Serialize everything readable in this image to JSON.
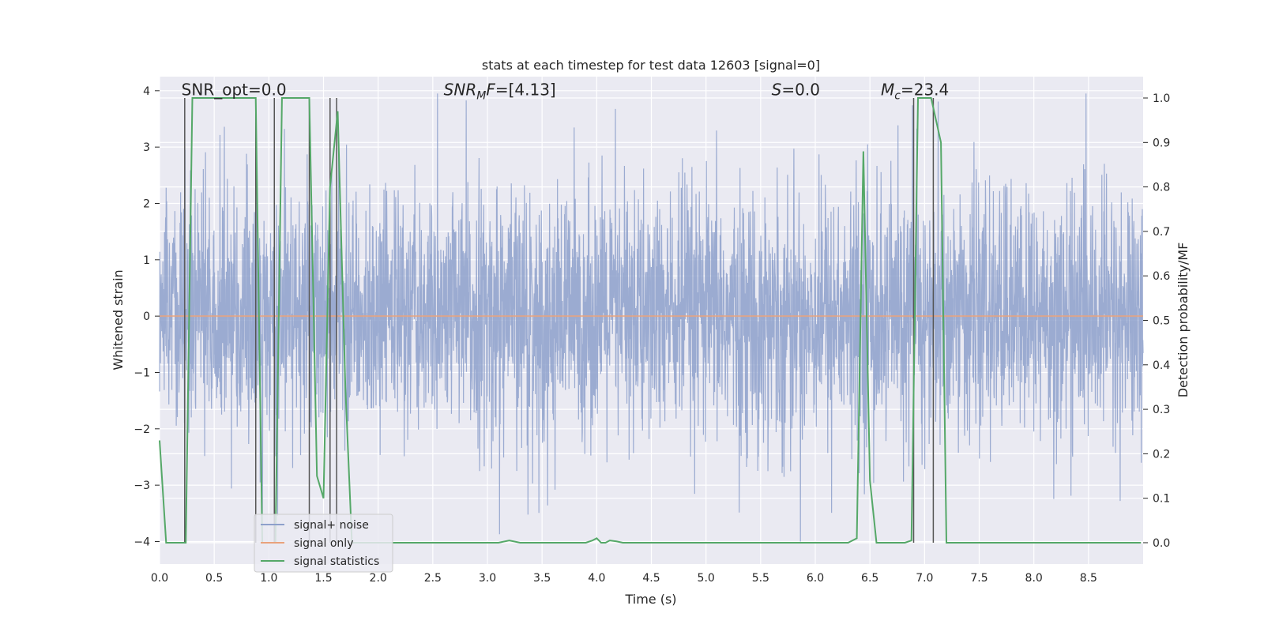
{
  "chart_data": {
    "type": "line",
    "title": "stats at each timestep for test data 12603 [signal=0]",
    "xlabel": "Time (s)",
    "ylabel_left": "Whitened strain",
    "ylabel_right": "Detection probability/MF",
    "xlim": [
      0.0,
      9.0
    ],
    "ylim_left": [
      -4.4,
      4.25
    ],
    "ylim_right": [
      -0.048,
      1.048
    ],
    "x_ticks": [
      0.0,
      0.5,
      1.0,
      1.5,
      2.0,
      2.5,
      3.0,
      3.5,
      4.0,
      4.5,
      5.0,
      5.5,
      6.0,
      6.5,
      7.0,
      7.5,
      8.0,
      8.5
    ],
    "x_tick_labels": [
      "0.0",
      "0.5",
      "1.0",
      "1.5",
      "2.0",
      "2.5",
      "3.0",
      "3.5",
      "4.0",
      "4.5",
      "5.0",
      "5.5",
      "6.0",
      "6.5",
      "7.0",
      "7.5",
      "8.0",
      "8.5"
    ],
    "y_left_ticks": [
      -4,
      -3,
      -2,
      -1,
      0,
      1,
      2,
      3,
      4
    ],
    "y_left_tick_labels": [
      "−4",
      "−3",
      "−2",
      "−1",
      "0",
      "1",
      "2",
      "3",
      "4"
    ],
    "y_right_ticks": [
      0.0,
      0.1,
      0.2,
      0.3,
      0.4,
      0.5,
      0.6,
      0.7,
      0.8,
      0.9,
      1.0
    ],
    "y_right_tick_labels": [
      "0.0",
      "0.1",
      "0.2",
      "0.3",
      "0.4",
      "0.5",
      "0.6",
      "0.7",
      "0.8",
      "0.9",
      "1.0"
    ],
    "grid": true,
    "legend_placement": "lower-left",
    "annotations": [
      {
        "text": "SNR_opt=0.0",
        "x": 0.2
      },
      {
        "text": "SNR_MF=[4.13]",
        "x": 2.6
      },
      {
        "text": "S=0.0",
        "x": 5.6
      },
      {
        "text": "M_c=23.4",
        "x": 6.6
      }
    ],
    "series": [
      {
        "name": "signal+ noise",
        "axis": "left",
        "color": "#8da0cb",
        "description_stats": {
          "envelope_low": -2.0,
          "envelope_high": 2.6,
          "peak_high": 3.9,
          "peak_low": -4.0
        },
        "seed": 12603
      },
      {
        "name": "signal only",
        "axis": "left",
        "color": "#e9a27c",
        "x": [
          0.0,
          9.0
        ],
        "y": [
          0.0,
          0.0
        ]
      },
      {
        "name": "signal statistics",
        "axis": "right",
        "color": "#55a868",
        "x": [
          0.0,
          0.06,
          0.12,
          0.18,
          0.24,
          0.3,
          0.36,
          0.5,
          0.7,
          0.88,
          0.94,
          1.0,
          1.06,
          1.12,
          1.3,
          1.37,
          1.44,
          1.5,
          1.56,
          1.63,
          1.7,
          1.76,
          1.82,
          1.9,
          2.1,
          3.1,
          3.2,
          3.3,
          3.9,
          3.96,
          4.0,
          4.04,
          4.08,
          4.12,
          4.18,
          4.24,
          4.3,
          6.3,
          6.38,
          6.44,
          6.5,
          6.56,
          6.62,
          6.82,
          6.88,
          6.94,
          7.06,
          7.15,
          7.2,
          7.26,
          7.4,
          8.98
        ],
        "y": [
          0.23,
          0.0,
          0.0,
          0.0,
          0.0,
          1.0,
          1.0,
          1.0,
          1.0,
          1.0,
          0.0,
          0.0,
          0.0,
          1.0,
          1.0,
          1.0,
          0.15,
          0.1,
          0.8,
          0.97,
          0.35,
          0.0,
          0.0,
          0.0,
          0.0,
          0.0,
          0.005,
          0.0,
          0.0,
          0.005,
          0.01,
          0.0,
          0.0,
          0.005,
          0.003,
          0.0,
          0.0,
          0.0,
          0.01,
          0.88,
          0.14,
          0.0,
          0.0,
          0.0,
          0.005,
          1.0,
          1.0,
          0.9,
          0.0,
          0.0,
          0.0,
          0.0
        ]
      }
    ],
    "vertical_markers": [
      0.23,
      0.88,
      1.05,
      1.37,
      1.56,
      1.62,
      6.9,
      7.08
    ]
  }
}
